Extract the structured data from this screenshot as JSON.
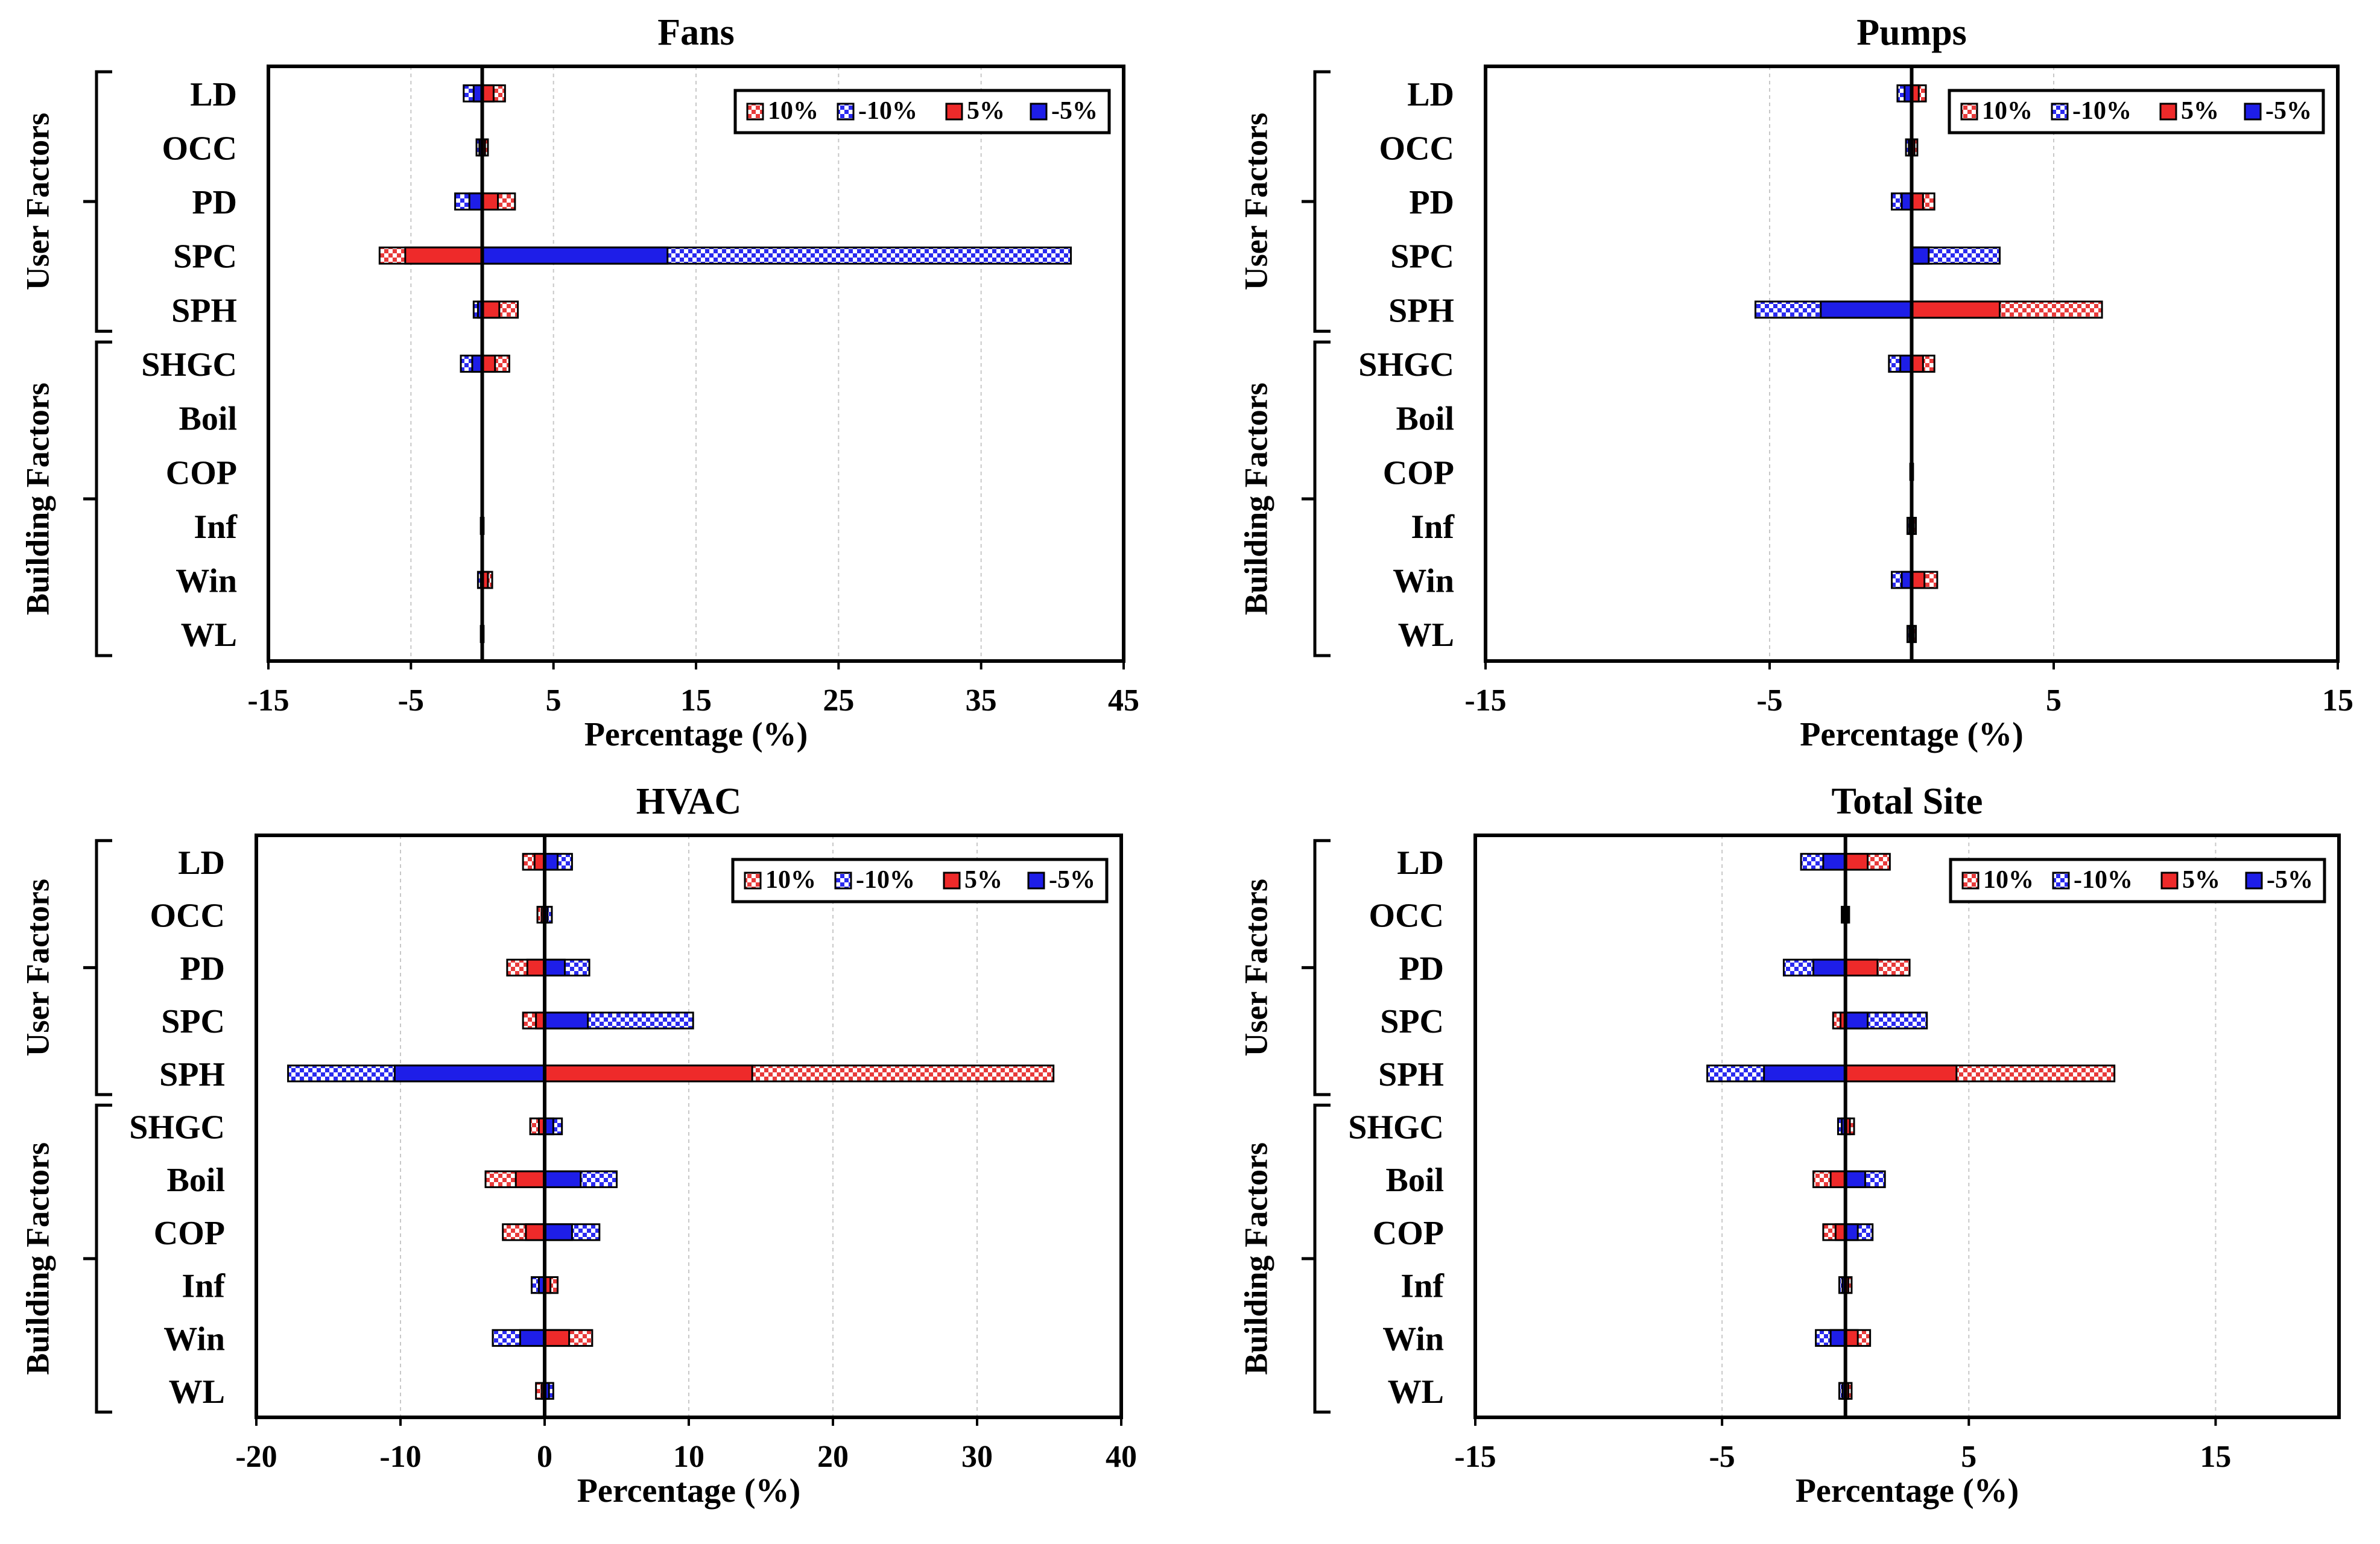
{
  "figure": {
    "colors": {
      "pos10": "#e83a3a",
      "neg10": "#2a2af0",
      "pos5": "#ee2a2a",
      "neg5": "#1e1ee8",
      "grid": "#c8c8c8",
      "axis": "#000000"
    }
  },
  "chart_data": [
    {
      "type": "bar",
      "orientation": "horizontal",
      "title": "Fans",
      "xlabel": "Percentage (%)",
      "xlim": [
        -15,
        45
      ],
      "xticks": [
        -15,
        -5,
        5,
        15,
        25,
        35,
        45
      ],
      "grid": true,
      "legend": [
        "10%",
        "-10%",
        "5%",
        "-5%"
      ],
      "legend_position": "top-right",
      "groups": [
        {
          "label": "User Factors",
          "categories": [
            "LD",
            "OCC",
            "PD",
            "SPC",
            "SPH"
          ]
        },
        {
          "label": "Building Factors",
          "categories": [
            "SHGC",
            "Boil",
            "COP",
            "Inf",
            "Win",
            "WL"
          ]
        }
      ],
      "categories": [
        "LD",
        "OCC",
        "PD",
        "SPC",
        "SPH",
        "SHGC",
        "Boil",
        "COP",
        "Inf",
        "Win",
        "WL"
      ],
      "series": [
        {
          "name": "10%",
          "values": [
            1.6,
            0.4,
            2.3,
            -7.2,
            2.5,
            1.9,
            0,
            0,
            0.1,
            0.7,
            0.1
          ]
        },
        {
          "name": "-10%",
          "values": [
            -1.3,
            -0.4,
            -1.9,
            41.3,
            -0.6,
            -1.5,
            0,
            0,
            -0.1,
            -0.3,
            -0.1
          ]
        },
        {
          "name": "5%",
          "values": [
            0.8,
            0.2,
            1.1,
            -5.4,
            1.2,
            0.9,
            0,
            0,
            0.05,
            0.4,
            0.05
          ]
        },
        {
          "name": "-5%",
          "values": [
            -0.6,
            -0.2,
            -0.9,
            13.0,
            -0.3,
            -0.7,
            0,
            0,
            -0.05,
            -0.1,
            -0.05
          ]
        }
      ]
    },
    {
      "type": "bar",
      "orientation": "horizontal",
      "title": "Pumps",
      "xlabel": "Percentage (%)",
      "xlim": [
        -15,
        15
      ],
      "xticks": [
        -15,
        -5,
        5,
        15
      ],
      "grid": true,
      "legend": [
        "10%",
        "-10%",
        "5%",
        "-5%"
      ],
      "legend_position": "top-right",
      "groups": [
        {
          "label": "User Factors",
          "categories": [
            "LD",
            "OCC",
            "PD",
            "SPC",
            "SPH"
          ]
        },
        {
          "label": "Building Factors",
          "categories": [
            "SHGC",
            "Boil",
            "COP",
            "Inf",
            "Win",
            "WL"
          ]
        }
      ],
      "categories": [
        "LD",
        "OCC",
        "PD",
        "SPC",
        "SPH",
        "SHGC",
        "Boil",
        "COP",
        "Inf",
        "Win",
        "WL"
      ],
      "series": [
        {
          "name": "10%",
          "values": [
            0.5,
            0.2,
            0.8,
            0.7,
            6.7,
            0.8,
            0,
            0.05,
            0.15,
            0.9,
            0.15
          ]
        },
        {
          "name": "-10%",
          "values": [
            -0.5,
            -0.2,
            -0.7,
            3.1,
            -5.5,
            -0.8,
            0,
            -0.05,
            -0.15,
            -0.7,
            -0.15
          ]
        },
        {
          "name": "5%",
          "values": [
            0.25,
            0.1,
            0.4,
            0.4,
            3.1,
            0.4,
            0,
            0.03,
            0.08,
            0.45,
            0.08
          ]
        },
        {
          "name": "-5%",
          "values": [
            -0.25,
            -0.1,
            -0.35,
            0.6,
            -3.2,
            -0.4,
            0,
            -0.03,
            -0.08,
            -0.35,
            -0.08
          ]
        }
      ]
    },
    {
      "type": "bar",
      "orientation": "horizontal",
      "title": "HVAC",
      "xlabel": "Percentage (%)",
      "xlim": [
        -20,
        40
      ],
      "xticks": [
        -20,
        -10,
        0,
        10,
        20,
        30,
        40
      ],
      "grid": true,
      "legend": [
        "10%",
        "-10%",
        "5%",
        "-5%"
      ],
      "legend_position": "top-right",
      "groups": [
        {
          "label": "User Factors",
          "categories": [
            "LD",
            "OCC",
            "PD",
            "SPC",
            "SPH"
          ]
        },
        {
          "label": "Building Factors",
          "categories": [
            "SHGC",
            "Boil",
            "COP",
            "Inf",
            "Win",
            "WL"
          ]
        }
      ],
      "categories": [
        "LD",
        "OCC",
        "PD",
        "SPC",
        "SPH",
        "SHGC",
        "Boil",
        "COP",
        "Inf",
        "Win",
        "WL"
      ],
      "series": [
        {
          "name": "10%",
          "values": [
            -1.5,
            -0.5,
            -2.6,
            -1.5,
            35.3,
            -1.0,
            -4.1,
            -2.9,
            0.9,
            3.3,
            -0.6
          ]
        },
        {
          "name": "-10%",
          "values": [
            1.9,
            0.5,
            3.1,
            10.3,
            -17.8,
            1.2,
            5.0,
            3.8,
            -0.9,
            -3.6,
            0.6
          ]
        },
        {
          "name": "5%",
          "values": [
            -0.7,
            -0.2,
            -1.2,
            -0.6,
            14.4,
            -0.4,
            -2.0,
            -1.3,
            0.4,
            1.7,
            -0.2
          ]
        },
        {
          "name": "-5%",
          "values": [
            0.9,
            0.2,
            1.4,
            3.0,
            -10.4,
            0.6,
            2.5,
            1.9,
            -0.4,
            -1.7,
            0.3
          ]
        }
      ]
    },
    {
      "type": "bar",
      "orientation": "horizontal",
      "title": "Total Site",
      "xlabel": "Percentage (%)",
      "xlim": [
        -15,
        20
      ],
      "xticks": [
        -15,
        -5,
        5,
        15
      ],
      "grid": true,
      "legend": [
        "10%",
        "-10%",
        "5%",
        "-5%"
      ],
      "legend_position": "top-right",
      "groups": [
        {
          "label": "User Factors",
          "categories": [
            "LD",
            "OCC",
            "PD",
            "SPC",
            "SPH"
          ]
        },
        {
          "label": "Building Factors",
          "categories": [
            "SHGC",
            "Boil",
            "COP",
            "Inf",
            "Win",
            "WL"
          ]
        }
      ],
      "categories": [
        "LD",
        "OCC",
        "PD",
        "SPC",
        "SPH",
        "SHGC",
        "Boil",
        "COP",
        "Inf",
        "Win",
        "WL"
      ],
      "series": [
        {
          "name": "10%",
          "values": [
            1.8,
            0.15,
            2.6,
            -0.5,
            10.9,
            0.35,
            -1.3,
            -0.9,
            0.25,
            1.0,
            0.25
          ]
        },
        {
          "name": "-10%",
          "values": [
            -1.8,
            -0.15,
            -2.5,
            3.3,
            -5.6,
            -0.3,
            1.6,
            1.1,
            -0.25,
            -1.2,
            -0.25
          ]
        },
        {
          "name": "5%",
          "values": [
            0.9,
            0.08,
            1.3,
            -0.2,
            4.5,
            0.18,
            -0.6,
            -0.4,
            0.12,
            0.5,
            0.12
          ]
        },
        {
          "name": "-5%",
          "values": [
            -0.9,
            -0.08,
            -1.3,
            0.9,
            -3.3,
            -0.15,
            0.8,
            0.5,
            -0.12,
            -0.6,
            -0.12
          ]
        }
      ]
    }
  ]
}
